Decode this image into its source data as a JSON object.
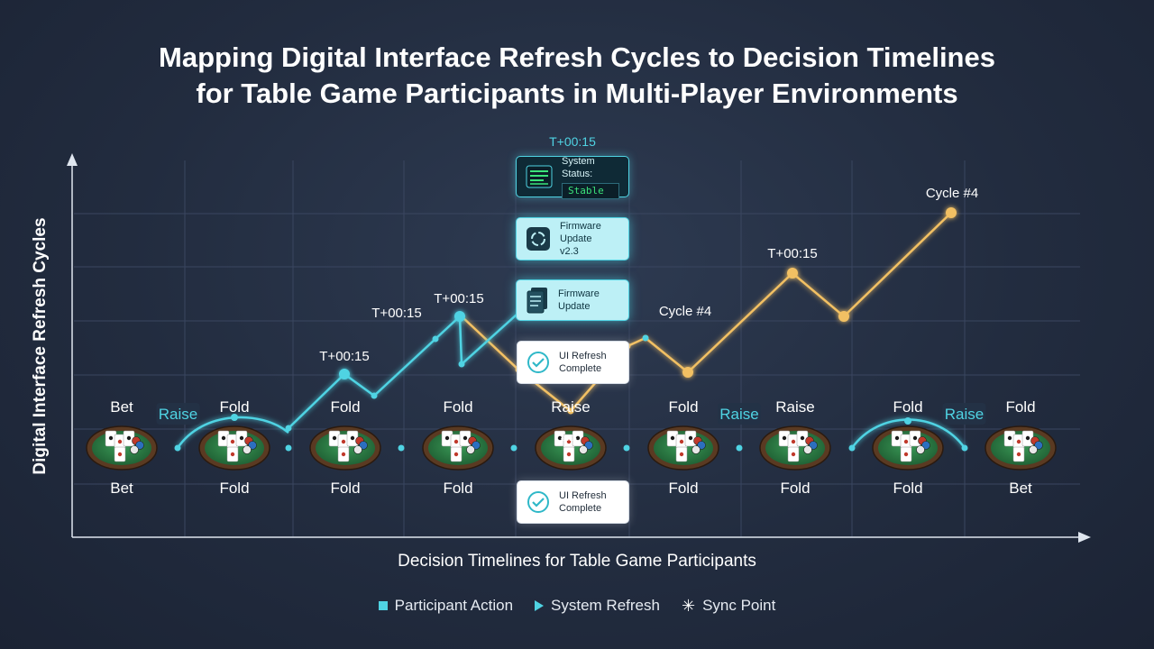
{
  "title": {
    "line1": "Mapping Digital Interface Refresh Cycles to Decision Timelines",
    "line2": "for Table Game Participants in Multi-Player Environments"
  },
  "chart_data": {
    "type": "line",
    "xlabel": "Decision Timelines for Table Game Participants",
    "ylabel": "Digital Interface Refresh Cycles",
    "grid": true,
    "tables": [
      {
        "top_action": "Bet",
        "bottom_action": "Bet"
      },
      {
        "top_action": "Fold",
        "bottom_action": "Fold"
      },
      {
        "top_action": "Fold",
        "bottom_action": "Fold"
      },
      {
        "top_action": "Fold",
        "bottom_action": "Fold"
      },
      {
        "top_action": "Raise",
        "bottom_action": "",
        "badge": "££££"
      },
      {
        "top_action": "Fold",
        "bottom_action": "Fold"
      },
      {
        "top_action": "Raise",
        "bottom_action": "Fold"
      },
      {
        "top_action": "Fold",
        "bottom_action": "Fold"
      },
      {
        "top_action": "Fold",
        "bottom_action": "Bet"
      }
    ],
    "between_labels": [
      {
        "text": "Raise",
        "after_table": 0
      },
      {
        "text": "Raise",
        "after_table": 5
      },
      {
        "text": "Raise",
        "after_table": 7
      }
    ],
    "annotations": [
      {
        "text": "T+00:15",
        "series": "cyan"
      },
      {
        "text": "T+00:15",
        "series": "cyan"
      },
      {
        "text": "T+00:15",
        "series": "cyan"
      },
      {
        "text": "T+00:15",
        "series": "header"
      },
      {
        "text": "Cycle #4",
        "series": "amber"
      },
      {
        "text": "T+00:15",
        "series": "amber"
      },
      {
        "text": "Cycle #4",
        "series": "amber"
      }
    ],
    "series": [
      {
        "color": "#4fd3e3"
      },
      {
        "color": "#f2c063"
      }
    ]
  },
  "cards": {
    "system_status": {
      "label": "System Status:",
      "value": "Stable",
      "icon": "terminal-icon"
    },
    "firmware_1": {
      "line1": "Firmware Update",
      "line2": "v2.3",
      "icon": "refresh-circle-icon"
    },
    "firmware_2": {
      "line1": "Firmware Update",
      "icon": "document-stack-icon"
    },
    "ui_refresh_1": {
      "line1": "UI Refresh",
      "line2": "Complete",
      "icon": "check-circle-icon"
    },
    "ui_refresh_2": {
      "line1": "UI Refresh",
      "line2": "Complete",
      "icon": "check-circle-icon"
    }
  },
  "legend": {
    "items": [
      {
        "label": "Participant Action",
        "icon": "square-icon"
      },
      {
        "label": "System Refresh",
        "icon": "triangle-icon"
      },
      {
        "label": "Sync Point",
        "icon": "star-icon"
      }
    ]
  },
  "colors": {
    "cyan": "#4fd3e3",
    "amber": "#f2c063",
    "felt": "#2e7d45",
    "rim": "#5a3a22",
    "background": "#252f44"
  }
}
